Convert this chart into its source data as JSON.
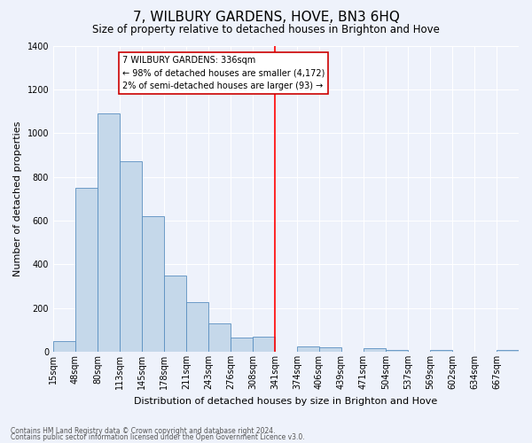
{
  "title": "7, WILBURY GARDENS, HOVE, BN3 6HQ",
  "subtitle": "Size of property relative to detached houses in Brighton and Hove",
  "xlabel": "Distribution of detached houses by size in Brighton and Hove",
  "ylabel": "Number of detached properties",
  "bar_labels": [
    "15sqm",
    "48sqm",
    "80sqm",
    "113sqm",
    "145sqm",
    "178sqm",
    "211sqm",
    "243sqm",
    "276sqm",
    "308sqm",
    "341sqm",
    "374sqm",
    "406sqm",
    "439sqm",
    "471sqm",
    "504sqm",
    "537sqm",
    "569sqm",
    "602sqm",
    "634sqm",
    "667sqm"
  ],
  "bar_values": [
    50,
    750,
    1090,
    870,
    620,
    350,
    225,
    130,
    65,
    70,
    0,
    25,
    20,
    0,
    15,
    10,
    0,
    10,
    0,
    0,
    10
  ],
  "red_line_bin": 10,
  "bar_color": "#c5d8ea",
  "bar_edge_color": "#5a8fc0",
  "ylim": [
    0,
    1400
  ],
  "yticks": [
    0,
    200,
    400,
    600,
    800,
    1000,
    1200,
    1400
  ],
  "annotation_title": "7 WILBURY GARDENS: 336sqm",
  "annotation_line1": "← 98% of detached houses are smaller (4,172)",
  "annotation_line2": "2% of semi-detached houses are larger (93) →",
  "annotation_box_facecolor": "#ffffff",
  "annotation_box_edgecolor": "#cc0000",
  "footnote1": "Contains HM Land Registry data © Crown copyright and database right 2024.",
  "footnote2": "Contains public sector information licensed under the Open Government Licence v3.0.",
  "background_color": "#eef2fb",
  "title_fontsize": 11,
  "subtitle_fontsize": 8.5,
  "axis_label_fontsize": 8,
  "tick_fontsize": 7,
  "ylabel_fontsize": 8
}
